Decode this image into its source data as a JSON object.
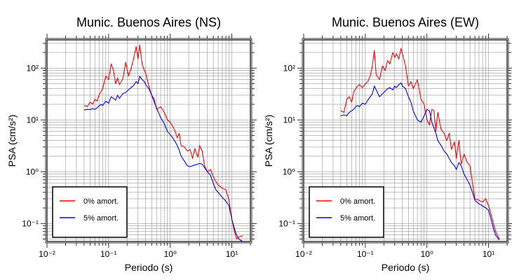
{
  "chart_data": [
    {
      "type": "line",
      "title": "Munic. Buenos Aires (NS)",
      "xlabel": "Periodo (s)",
      "ylabel": "PSA (cm/s²)",
      "xscale": "log",
      "yscale": "log",
      "xlim": [
        0.01,
        20
      ],
      "ylim": [
        0.045,
        350
      ],
      "grid": true,
      "legend_position": "bottom-left",
      "x_ticks": [
        0.01,
        0.1,
        1,
        10
      ],
      "x_tick_labels": [
        "10⁻²",
        "10⁻¹",
        "10⁰",
        "10¹"
      ],
      "y_ticks": [
        0.1,
        1,
        10,
        100
      ],
      "y_tick_labels": [
        "10⁻¹",
        "10⁰",
        "10¹",
        "10²"
      ],
      "series": [
        {
          "name": "0% amort.",
          "color": "#ff0000",
          "x": [
            0.04,
            0.045,
            0.05,
            0.055,
            0.06,
            0.065,
            0.07,
            0.075,
            0.08,
            0.09,
            0.1,
            0.11,
            0.12,
            0.13,
            0.14,
            0.15,
            0.17,
            0.19,
            0.21,
            0.23,
            0.25,
            0.28,
            0.3,
            0.32,
            0.35,
            0.38,
            0.4,
            0.45,
            0.5,
            0.55,
            0.6,
            0.7,
            0.8,
            0.9,
            1.0,
            1.1,
            1.2,
            1.3,
            1.4,
            1.5,
            1.7,
            1.9,
            2.1,
            2.3,
            2.5,
            2.8,
            3.0,
            3.3,
            3.6,
            4.0,
            4.5,
            5.0,
            5.5,
            6.0,
            7.0,
            8.0,
            9.0,
            10.0,
            11.0,
            12.0,
            13.0,
            15.0
          ],
          "y": [
            19,
            18,
            22,
            20,
            25,
            23,
            30,
            35,
            40,
            70,
            60,
            120,
            90,
            50,
            65,
            48,
            62,
            130,
            70,
            95,
            140,
            260,
            150,
            280,
            120,
            90,
            80,
            45,
            30,
            25,
            16,
            18,
            14,
            10,
            9,
            7.5,
            6,
            4.5,
            5.5,
            3.2,
            3.0,
            2.5,
            2.7,
            1.8,
            2.8,
            1.9,
            3.2,
            2.5,
            1.3,
            1.0,
            1.1,
            0.8,
            0.65,
            0.55,
            0.48,
            0.45,
            0.28,
            0.12,
            0.07,
            0.05,
            0.055,
            0.058
          ]
        },
        {
          "name": "5% amort.",
          "color": "#0000ff",
          "x": [
            0.04,
            0.045,
            0.05,
            0.055,
            0.06,
            0.065,
            0.07,
            0.075,
            0.08,
            0.09,
            0.1,
            0.11,
            0.12,
            0.13,
            0.14,
            0.15,
            0.17,
            0.19,
            0.21,
            0.23,
            0.25,
            0.28,
            0.3,
            0.32,
            0.35,
            0.38,
            0.4,
            0.45,
            0.5,
            0.55,
            0.6,
            0.7,
            0.8,
            0.9,
            1.0,
            1.1,
            1.2,
            1.3,
            1.4,
            1.5,
            1.7,
            1.9,
            2.1,
            2.3,
            2.5,
            2.8,
            3.0,
            3.3,
            3.6,
            4.0,
            4.5,
            5.0,
            5.5,
            6.0,
            7.0,
            8.0,
            9.0,
            10.0,
            11.0,
            12.0,
            13.0,
            15.0
          ],
          "y": [
            15.5,
            16,
            15.8,
            16.5,
            16,
            17,
            18.5,
            20,
            19,
            23,
            21,
            28,
            26,
            24,
            30,
            26,
            32,
            34,
            38,
            42,
            45,
            55,
            50,
            70,
            60,
            55,
            48,
            40,
            30,
            22,
            17,
            11,
            8.5,
            6,
            5.2,
            4.5,
            3.8,
            3.2,
            2.6,
            2.0,
            1.6,
            1.3,
            1.25,
            1.3,
            1.35,
            1.4,
            1.45,
            1.4,
            1.2,
            1.0,
            0.85,
            0.6,
            0.45,
            0.4,
            0.32,
            0.27,
            0.22,
            0.12,
            0.08,
            0.06,
            0.05,
            0.045
          ]
        }
      ]
    },
    {
      "type": "line",
      "title": "Munic. Buenos Aires (EW)",
      "xlabel": "Periodo (s)",
      "ylabel": "PSA (cm/s²)",
      "xscale": "log",
      "yscale": "log",
      "xlim": [
        0.01,
        20
      ],
      "ylim": [
        0.045,
        350
      ],
      "grid": true,
      "legend_position": "bottom-left",
      "x_ticks": [
        0.01,
        0.1,
        1,
        10
      ],
      "x_tick_labels": [
        "10⁻²",
        "10⁻¹",
        "10⁰",
        "10¹"
      ],
      "y_ticks": [
        0.1,
        1,
        10,
        100
      ],
      "y_tick_labels": [
        "10⁻¹",
        "10⁰",
        "10¹",
        "10²"
      ],
      "series": [
        {
          "name": "0% amort.",
          "color": "#ff0000",
          "x": [
            0.04,
            0.045,
            0.05,
            0.055,
            0.06,
            0.065,
            0.07,
            0.075,
            0.08,
            0.09,
            0.1,
            0.11,
            0.12,
            0.13,
            0.14,
            0.15,
            0.17,
            0.19,
            0.21,
            0.23,
            0.25,
            0.28,
            0.3,
            0.32,
            0.35,
            0.38,
            0.4,
            0.45,
            0.5,
            0.55,
            0.6,
            0.7,
            0.8,
            0.9,
            1.0,
            1.1,
            1.2,
            1.3,
            1.4,
            1.5,
            1.7,
            1.9,
            2.1,
            2.3,
            2.5,
            2.8,
            3.0,
            3.3,
            3.6,
            4.0,
            4.5,
            5.0,
            5.5,
            6.0,
            7.0,
            8.0,
            9.0,
            10.0,
            11.0,
            12.0,
            13.0,
            15.0
          ],
          "y": [
            15,
            14,
            25,
            28,
            22,
            35,
            40,
            45,
            48,
            42,
            50,
            55,
            70,
            110,
            220,
            75,
            60,
            110,
            90,
            140,
            120,
            200,
            160,
            190,
            150,
            240,
            190,
            110,
            45,
            55,
            40,
            60,
            25,
            20,
            10,
            8,
            16,
            15,
            6,
            14,
            6.5,
            5.5,
            4.0,
            5.5,
            2.7,
            3.8,
            1.8,
            4.0,
            1.4,
            2.2,
            1.5,
            1.3,
            0.6,
            0.3,
            0.28,
            0.26,
            0.3,
            0.22,
            0.15,
            0.1,
            0.07,
            0.05
          ]
        },
        {
          "name": "5% amort.",
          "color": "#0000ff",
          "x": [
            0.04,
            0.045,
            0.05,
            0.055,
            0.06,
            0.065,
            0.07,
            0.075,
            0.08,
            0.09,
            0.1,
            0.11,
            0.12,
            0.13,
            0.14,
            0.15,
            0.17,
            0.19,
            0.21,
            0.23,
            0.25,
            0.28,
            0.3,
            0.32,
            0.35,
            0.38,
            0.4,
            0.45,
            0.5,
            0.55,
            0.6,
            0.7,
            0.8,
            0.9,
            1.0,
            1.1,
            1.2,
            1.3,
            1.4,
            1.5,
            1.7,
            1.9,
            2.1,
            2.3,
            2.5,
            2.8,
            3.0,
            3.3,
            3.6,
            4.0,
            4.5,
            5.0,
            5.5,
            6.0,
            7.0,
            8.0,
            9.0,
            10.0,
            11.0,
            12.0,
            13.0,
            15.0
          ],
          "y": [
            12,
            12.5,
            12,
            14,
            15,
            16,
            18,
            19,
            18,
            21,
            20,
            24,
            28,
            32,
            45,
            38,
            28,
            32,
            36,
            40,
            42,
            38,
            45,
            42,
            48,
            52,
            45,
            40,
            28,
            22,
            15,
            10,
            9,
            12,
            16,
            15,
            9,
            7,
            5.5,
            4,
            3.2,
            2.5,
            2.2,
            1.8,
            1.5,
            1.3,
            1.1,
            1.5,
            1.3,
            0.9,
            0.7,
            0.55,
            0.4,
            0.28,
            0.24,
            0.22,
            0.2,
            0.18,
            0.12,
            0.08,
            0.06,
            0.048
          ]
        }
      ]
    }
  ]
}
